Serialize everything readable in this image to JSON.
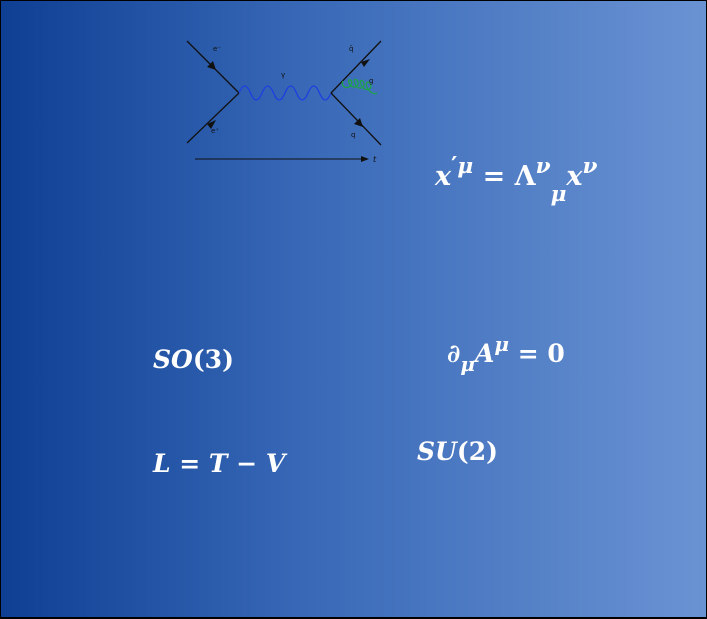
{
  "feynman_diagram": {
    "labels": {
      "electron_in": "e⁻",
      "positron_in": "e⁺",
      "photon": "γ",
      "antiquark": "q̄",
      "gluon": "g",
      "quark": "q",
      "time_axis": "t"
    },
    "colors": {
      "fermion_lines": "#111111",
      "photon": "#1d3fe0",
      "gluon": "#1ea34a"
    }
  },
  "equations": {
    "lorentz": {
      "base": "x",
      "prime": "′",
      "upper_index": "μ",
      "equals": " = ",
      "lambda": "Λ",
      "lambda_upper": "ν",
      "lambda_lower": "μ",
      "base2": "x",
      "upper_index2": "ν"
    },
    "so3": {
      "group": "SO",
      "arg": "(3)"
    },
    "gauge": {
      "partial": "∂",
      "lower_index": "μ",
      "field": "A",
      "upper_index": "μ",
      "rhs": " = 0"
    },
    "lagrangian": {
      "text": "L = T − V"
    },
    "su2": {
      "group": "SU",
      "arg": "(2)"
    }
  },
  "colors": {
    "gradient_left": "#0e3f93",
    "gradient_right": "#6a93d3",
    "text": "#ffffff"
  }
}
